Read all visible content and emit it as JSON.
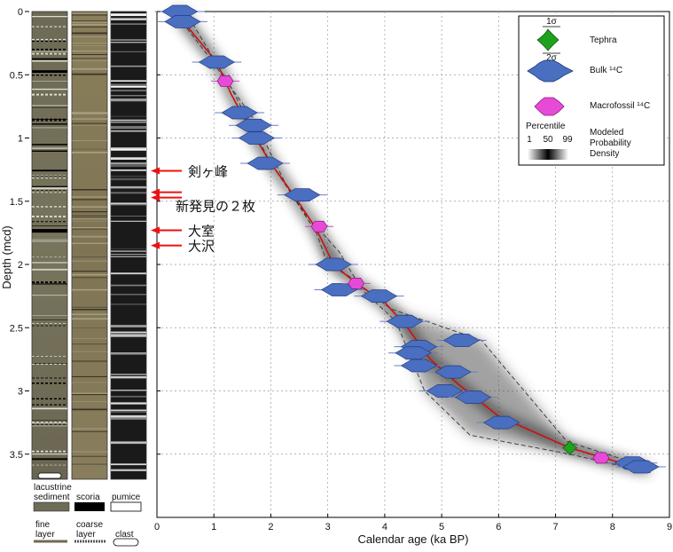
{
  "chart_data": {
    "type": "scatter",
    "xlabel": "Calendar age (ka BP)",
    "ylabel": "Depth (mcd)",
    "xlim": [
      0,
      9
    ],
    "ylim": [
      0,
      4
    ],
    "y_inverted": true,
    "grid": true,
    "xticks": [
      "0",
      "1",
      "2",
      "3",
      "4",
      "5",
      "6",
      "7",
      "8",
      "9"
    ],
    "yticks": [
      "0",
      "0.5",
      "1",
      "1.5",
      "2",
      "2.5",
      "3",
      "3.5"
    ],
    "legend": {
      "placement": "top-right",
      "sigma1": "1σ",
      "sigma2": "2σ",
      "tephra": "Tephra",
      "bulk": "Bulk ¹⁴C",
      "macro": "Macrofossil ¹⁴C",
      "percentile_title": "Percentile",
      "percentile_ticks": [
        "1",
        "50",
        "99"
      ],
      "density_label": [
        "Modeled",
        "Probability",
        "Density"
      ]
    },
    "colors": {
      "tephra": "#1ea21e",
      "bulk": "#4a6fc0",
      "macro": "#e84ad8",
      "median": "#cc1111",
      "arrow": "#ee1111"
    },
    "series": [
      {
        "name": "Bulk ¹⁴C",
        "type": "bulk",
        "points": [
          [
            0.4,
            0.0
          ],
          [
            0.45,
            0.08
          ],
          [
            1.05,
            0.4
          ],
          [
            1.45,
            0.8
          ],
          [
            1.7,
            0.9
          ],
          [
            1.75,
            1.0
          ],
          [
            1.9,
            1.2
          ],
          [
            2.55,
            1.45
          ],
          [
            3.1,
            2.0
          ],
          [
            3.2,
            2.2
          ],
          [
            3.9,
            2.25
          ],
          [
            4.35,
            2.45
          ],
          [
            4.6,
            2.65
          ],
          [
            5.35,
            2.6
          ],
          [
            4.5,
            2.7
          ],
          [
            4.6,
            2.8
          ],
          [
            5.2,
            2.85
          ],
          [
            5.05,
            3.0
          ],
          [
            5.55,
            3.05
          ],
          [
            6.05,
            3.25
          ],
          [
            8.35,
            3.57
          ],
          [
            8.5,
            3.6
          ]
        ]
      },
      {
        "name": "Macrofossil ¹⁴C",
        "type": "macro",
        "points": [
          [
            1.2,
            0.55
          ],
          [
            2.85,
            1.7
          ],
          [
            3.5,
            2.15
          ],
          [
            7.8,
            3.53
          ]
        ]
      },
      {
        "name": "Tephra",
        "type": "tephra",
        "points": [
          [
            7.25,
            3.45
          ]
        ]
      }
    ],
    "median_curve": [
      [
        0.35,
        0.0
      ],
      [
        0.5,
        0.1
      ],
      [
        1.05,
        0.4
      ],
      [
        1.3,
        0.65
      ],
      [
        1.6,
        0.9
      ],
      [
        2.0,
        1.2
      ],
      [
        2.4,
        1.45
      ],
      [
        2.8,
        1.72
      ],
      [
        3.1,
        2.0
      ],
      [
        3.5,
        2.15
      ],
      [
        4.0,
        2.3
      ],
      [
        4.4,
        2.5
      ],
      [
        4.8,
        2.75
      ],
      [
        5.3,
        2.95
      ],
      [
        6.0,
        3.2
      ],
      [
        7.25,
        3.45
      ],
      [
        8.0,
        3.55
      ],
      [
        8.6,
        3.62
      ]
    ],
    "envelope_upper": [
      [
        0.3,
        0.0
      ],
      [
        0.9,
        0.35
      ],
      [
        1.7,
        0.85
      ],
      [
        2.3,
        1.4
      ],
      [
        2.8,
        1.75
      ],
      [
        3.0,
        2.0
      ],
      [
        3.4,
        2.1
      ],
      [
        4.1,
        2.35
      ],
      [
        5.7,
        2.6
      ],
      [
        7.2,
        3.4
      ],
      [
        8.6,
        3.6
      ]
    ],
    "envelope_lower": [
      [
        0.5,
        0.0
      ],
      [
        1.3,
        0.6
      ],
      [
        2.0,
        1.2
      ],
      [
        2.6,
        1.6
      ],
      [
        3.2,
        1.9
      ],
      [
        3.6,
        2.2
      ],
      [
        4.2,
        2.45
      ],
      [
        4.7,
        3.0
      ],
      [
        5.5,
        3.35
      ],
      [
        7.25,
        3.5
      ],
      [
        8.7,
        3.65
      ]
    ],
    "core_labels": {
      "lithology": "lacustrine sediment",
      "scoria": "scoria",
      "pumice": "pumice",
      "fine": "fine layer",
      "coarse": "coarse layer",
      "clast": "clast"
    },
    "annotations": [
      {
        "text": "剣ヶ峰",
        "depth": 1.26
      },
      {
        "text": "新発見の２枚",
        "depth": 1.45
      },
      {
        "text": "大室",
        "depth": 1.73
      },
      {
        "text": "大沢",
        "depth": 1.85
      }
    ]
  }
}
